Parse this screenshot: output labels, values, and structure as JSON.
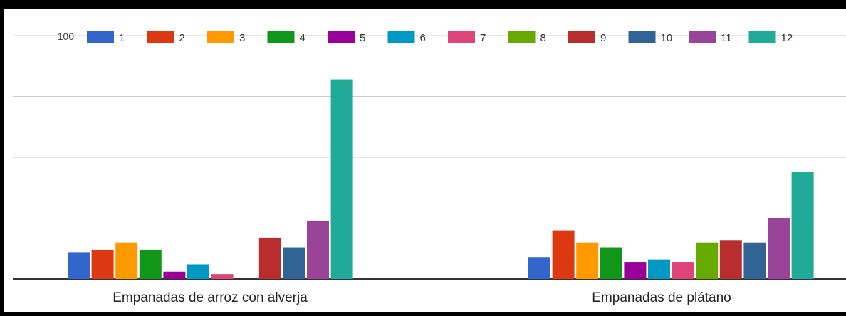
{
  "chart_data": {
    "type": "bar",
    "y_tick_labels": [
      "100"
    ],
    "ylim": [
      0,
      100
    ],
    "grid": true,
    "legend_position": "top",
    "categories": [
      "Empanadas de arroz con alverja",
      "Empanadas de plátano"
    ],
    "series": [
      {
        "name": "1",
        "color": "#3366cc",
        "values": [
          11,
          9
        ]
      },
      {
        "name": "2",
        "color": "#dc3912",
        "values": [
          12,
          20
        ]
      },
      {
        "name": "3",
        "color": "#ff9900",
        "values": [
          15,
          15
        ]
      },
      {
        "name": "4",
        "color": "#109618",
        "values": [
          12,
          13
        ]
      },
      {
        "name": "5",
        "color": "#990099",
        "values": [
          3,
          7
        ]
      },
      {
        "name": "6",
        "color": "#0099c6",
        "values": [
          6,
          8
        ]
      },
      {
        "name": "7",
        "color": "#dd4477",
        "values": [
          2,
          7
        ]
      },
      {
        "name": "8",
        "color": "#66aa00",
        "values": [
          0,
          15
        ]
      },
      {
        "name": "9",
        "color": "#b82e2e",
        "values": [
          17,
          16
        ]
      },
      {
        "name": "10",
        "color": "#316395",
        "values": [
          13,
          15
        ]
      },
      {
        "name": "11",
        "color": "#994499",
        "values": [
          24,
          25
        ]
      },
      {
        "name": "12",
        "color": "#22aa99",
        "values": [
          82,
          44
        ]
      }
    ]
  }
}
